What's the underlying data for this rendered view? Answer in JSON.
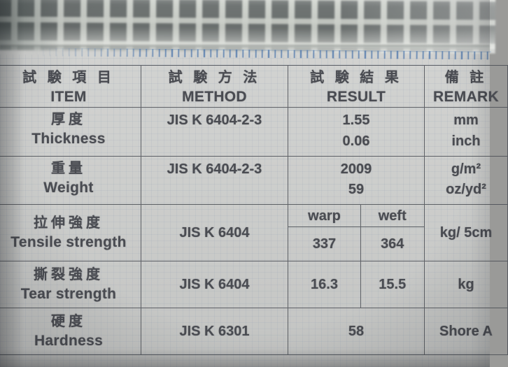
{
  "colors": {
    "paper": "#cccdcb",
    "ink": "#4a4c52",
    "table_line": "#494c54",
    "tick_blue": "#3e6ca8",
    "mesh_dark": "#6f7473",
    "mesh_light": "#d0d4ce"
  },
  "header": {
    "item_cjk": "試 験 項 目",
    "item_en": "ITEM",
    "method_cjk": "試 験 方 法",
    "method_en": "METHOD",
    "result_cjk": "試 験 結 果",
    "result_en": "RESULT",
    "remark_cjk": "備 註",
    "remark_en": "REMARK"
  },
  "rows": {
    "thickness": {
      "cjk": "厚度",
      "en": "Thickness",
      "method": "JIS K 6404-2-3",
      "result1": "1.55",
      "result2": "0.06",
      "remark1": "mm",
      "remark2": "inch"
    },
    "weight": {
      "cjk": "重量",
      "en": "Weight",
      "method": "JIS K 6404-2-3",
      "result1": "2009",
      "result2": "59",
      "remark1": "g/m²",
      "remark2": "oz/yd²"
    },
    "tensile": {
      "cjk": "拉伸強度",
      "en": "Tensile strength",
      "method": "JIS K 6404",
      "warp_label": "warp",
      "weft_label": "weft",
      "warp": "337",
      "weft": "364",
      "remark": "kg/ 5cm"
    },
    "tear": {
      "cjk": "撕裂強度",
      "en": "Tear strength",
      "method": "JIS K 6404",
      "warp": "16.3",
      "weft": "15.5",
      "remark": "kg"
    },
    "hardness": {
      "cjk": "硬度",
      "en": "Hardness",
      "method": "JIS K 6301",
      "result": "58",
      "remark": "Shore A"
    }
  }
}
